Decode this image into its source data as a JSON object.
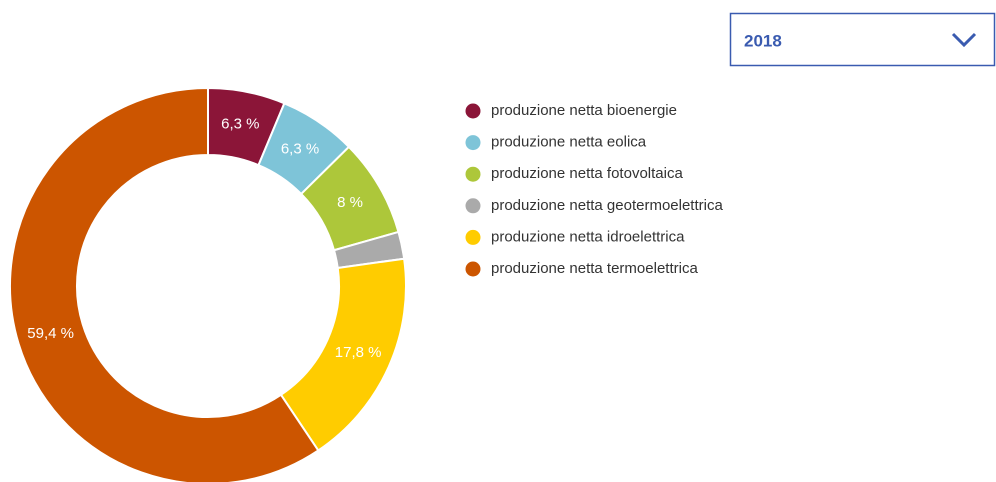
{
  "year_select": "2018",
  "chart_data": {
    "type": "donut",
    "categories": [
      "produzione netta bioenergie",
      "produzione netta eolica",
      "produzione netta fotovoltaica",
      "produzione netta geotermoelettrica",
      "produzione netta idroelettrica",
      "produzione netta termoelettrica"
    ],
    "values": [
      6.3,
      6.3,
      8,
      2.2,
      17.8,
      59.4
    ],
    "value_labels": [
      "6,3 %",
      "6,3 %",
      "8 %",
      null,
      "17,8 %",
      "59,4 %"
    ],
    "colors": [
      "#8b1538",
      "#7ec4d8",
      "#adc73a",
      "#aaaaaa",
      "#ffcc00",
      "#cc5500"
    ],
    "legend": "right"
  }
}
